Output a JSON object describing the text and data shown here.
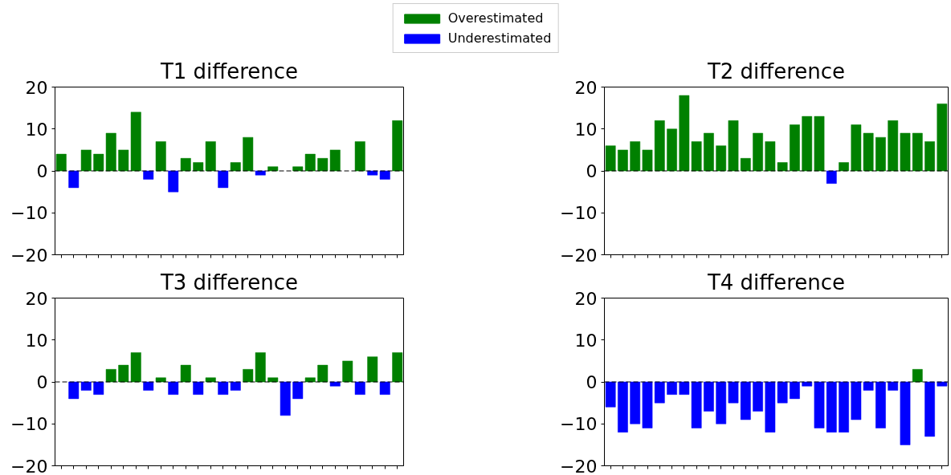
{
  "chart_data": [
    {
      "type": "bar",
      "title": "T1 difference",
      "categories": [
        null,
        null,
        null,
        null,
        null,
        null,
        null,
        null,
        null,
        null,
        null,
        null,
        null,
        null,
        null,
        null,
        null,
        null,
        null,
        null,
        null,
        null,
        null,
        null,
        null,
        null,
        null,
        null
      ],
      "series": [
        {
          "name": "Overestimated",
          "color": "#008000",
          "values": [
            4,
            null,
            5,
            4,
            9,
            5,
            14,
            null,
            7,
            null,
            3,
            2,
            7,
            null,
            2,
            8,
            null,
            1,
            null,
            1,
            4,
            3,
            5,
            null,
            7,
            null,
            null,
            12
          ]
        },
        {
          "name": "Underestimated",
          "color": "#0000ff",
          "values": [
            null,
            -4,
            null,
            null,
            null,
            null,
            null,
            -2,
            null,
            -5,
            null,
            null,
            null,
            -4,
            null,
            null,
            -1,
            null,
            null,
            null,
            null,
            null,
            null,
            null,
            null,
            -1,
            -2,
            null
          ]
        }
      ],
      "ylim": [
        -20,
        20
      ],
      "yticks": [
        -20,
        -10,
        0,
        10,
        20
      ],
      "tick_labels": "y",
      "legend": "top",
      "ref_lines": [
        {
          "axis": "y",
          "value": 0,
          "color": "#000000",
          "line_style": "dashed"
        }
      ]
    },
    {
      "type": "bar",
      "title": "T2 difference",
      "categories": [
        null,
        null,
        null,
        null,
        null,
        null,
        null,
        null,
        null,
        null,
        null,
        null,
        null,
        null,
        null,
        null,
        null,
        null,
        null,
        null,
        null,
        null,
        null,
        null,
        null,
        null,
        null,
        null
      ],
      "series": [
        {
          "color": "#008000",
          "values": [
            6,
            5,
            7,
            5,
            12,
            10,
            18,
            7,
            9,
            6,
            12,
            3,
            9,
            7,
            2,
            11,
            13,
            13,
            null,
            2,
            11,
            9,
            8,
            12,
            9,
            9,
            7,
            16
          ]
        },
        {
          "color": "#0000ff",
          "values": [
            null,
            null,
            null,
            null,
            null,
            null,
            null,
            null,
            null,
            null,
            null,
            null,
            null,
            null,
            null,
            null,
            null,
            null,
            -3,
            null,
            null,
            null,
            null,
            null,
            null,
            null,
            null,
            null
          ]
        }
      ],
      "ylim": [
        -20,
        20
      ],
      "yticks": [
        -20,
        -10,
        0,
        10,
        20
      ],
      "tick_labels": "y",
      "ref_lines": [
        {
          "axis": "y",
          "value": 0,
          "color": "#000000",
          "line_style": "dashed"
        }
      ]
    },
    {
      "type": "bar",
      "title": "T3 difference",
      "categories": [
        null,
        null,
        null,
        null,
        null,
        null,
        null,
        null,
        null,
        null,
        null,
        null,
        null,
        null,
        null,
        null,
        null,
        null,
        null,
        null,
        null,
        null,
        null,
        null,
        null,
        null,
        null,
        null
      ],
      "series": [
        {
          "color": "#008000",
          "values": [
            null,
            null,
            null,
            null,
            3,
            4,
            7,
            null,
            1,
            null,
            4,
            null,
            1,
            null,
            null,
            3,
            7,
            1,
            null,
            null,
            1,
            4,
            null,
            5,
            null,
            6,
            null,
            7
          ]
        },
        {
          "color": "#0000ff",
          "values": [
            null,
            -4,
            -2,
            -3,
            null,
            null,
            null,
            -2,
            null,
            -3,
            null,
            -3,
            null,
            -3,
            -2,
            null,
            null,
            null,
            -8,
            -4,
            null,
            null,
            -1,
            null,
            -3,
            null,
            -3,
            null
          ]
        }
      ],
      "ylim": [
        -20,
        20
      ],
      "yticks": [
        -20,
        -10,
        0,
        10,
        20
      ],
      "tick_labels": "y",
      "ref_lines": [
        {
          "axis": "y",
          "value": 0,
          "color": "#000000",
          "line_style": "dashed"
        }
      ]
    },
    {
      "type": "bar",
      "title": "T4 difference",
      "categories": [
        null,
        null,
        null,
        null,
        null,
        null,
        null,
        null,
        null,
        null,
        null,
        null,
        null,
        null,
        null,
        null,
        null,
        null,
        null,
        null,
        null,
        null,
        null,
        null,
        null,
        null,
        null,
        null
      ],
      "series": [
        {
          "color": "#008000",
          "values": [
            null,
            null,
            null,
            null,
            null,
            null,
            null,
            null,
            null,
            null,
            null,
            null,
            null,
            null,
            null,
            null,
            null,
            null,
            null,
            null,
            null,
            null,
            null,
            null,
            null,
            3,
            null,
            null
          ]
        },
        {
          "color": "#0000ff",
          "values": [
            -6,
            -12,
            -10,
            -11,
            -5,
            -3,
            -3,
            -11,
            -7,
            -10,
            -5,
            -9,
            -7,
            -12,
            -5,
            -4,
            -1,
            -11,
            -12,
            -12,
            -9,
            -2,
            -11,
            -2,
            -15,
            null,
            -13,
            -1
          ]
        }
      ],
      "ylim": [
        -20,
        20
      ],
      "yticks": [
        -20,
        -10,
        0,
        10,
        20
      ],
      "tick_labels": "y",
      "ref_lines": [
        {
          "axis": "y",
          "value": 0,
          "color": "#000000",
          "line_style": "dashed"
        }
      ]
    }
  ]
}
